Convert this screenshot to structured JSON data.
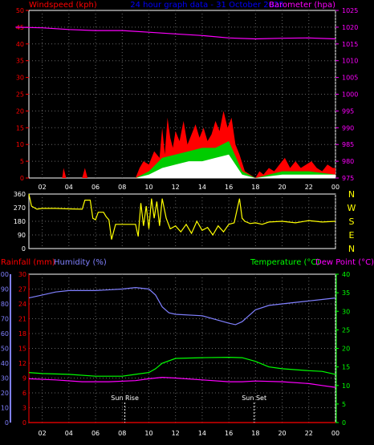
{
  "header": {
    "left": "Windspeed (kph)",
    "center": "24 hour graph data - 31 October 2025",
    "right": "Barometer (hpa)"
  },
  "colors": {
    "windspeed": "#ff0000",
    "gust": "#00cc00",
    "avg_wind": "#ffffff",
    "barometer": "#ff00ff",
    "direction": "#ffff00",
    "rainfall": "#ff0000",
    "humidity": "#8080ff",
    "temperature": "#00ff00",
    "dewpoint": "#ff00ff",
    "title_blue": "#0000ff",
    "grid": "#666666"
  },
  "x_ticks": [
    "02",
    "04",
    "06",
    "08",
    "10",
    "12",
    "14",
    "16",
    "18",
    "20",
    "22",
    "00"
  ],
  "chart_data": [
    {
      "type": "area",
      "title": "",
      "x_unit_hours": [
        1,
        24
      ],
      "series": [
        {
          "name": "Windspeed (kph)",
          "axis": "left",
          "ylim": [
            0,
            50
          ],
          "points": [
            [
              1,
              0
            ],
            [
              3.5,
              0
            ],
            [
              3.6,
              3
            ],
            [
              3.8,
              0
            ],
            [
              5,
              0
            ],
            [
              5.2,
              3
            ],
            [
              5.4,
              0
            ],
            [
              9,
              0
            ],
            [
              9.3,
              3
            ],
            [
              9.6,
              5
            ],
            [
              10,
              4
            ],
            [
              10.4,
              8
            ],
            [
              10.8,
              6
            ],
            [
              11,
              15
            ],
            [
              11.2,
              7
            ],
            [
              11.4,
              18
            ],
            [
              11.6,
              12
            ],
            [
              11.8,
              9
            ],
            [
              12,
              14
            ],
            [
              12.3,
              11
            ],
            [
              12.6,
              17
            ],
            [
              12.9,
              10
            ],
            [
              13.2,
              13
            ],
            [
              13.5,
              16
            ],
            [
              13.8,
              12
            ],
            [
              14.1,
              15
            ],
            [
              14.4,
              11
            ],
            [
              14.7,
              13
            ],
            [
              15,
              17
            ],
            [
              15.3,
              14
            ],
            [
              15.6,
              20
            ],
            [
              15.9,
              15
            ],
            [
              16.2,
              18
            ],
            [
              16.5,
              10
            ],
            [
              16.8,
              7
            ],
            [
              17.2,
              2
            ],
            [
              17.6,
              1
            ],
            [
              18,
              0
            ],
            [
              18.3,
              2
            ],
            [
              18.6,
              1
            ],
            [
              19,
              3
            ],
            [
              19.4,
              2
            ],
            [
              19.8,
              4
            ],
            [
              20.2,
              6
            ],
            [
              20.6,
              3
            ],
            [
              21,
              5
            ],
            [
              21.4,
              3
            ],
            [
              21.8,
              4
            ],
            [
              22.2,
              5
            ],
            [
              22.6,
              3
            ],
            [
              23,
              2
            ],
            [
              23.4,
              4
            ],
            [
              23.8,
              3
            ],
            [
              24,
              3
            ]
          ]
        },
        {
          "name": "Gust",
          "axis": "left",
          "ylim": [
            0,
            50
          ],
          "points": [
            [
              9,
              0
            ],
            [
              10,
              2
            ],
            [
              11,
              6
            ],
            [
              12,
              7
            ],
            [
              13,
              8
            ],
            [
              14,
              9
            ],
            [
              15,
              9
            ],
            [
              16,
              11
            ],
            [
              17,
              2
            ],
            [
              18,
              0
            ],
            [
              20,
              2
            ],
            [
              22,
              2
            ],
            [
              24,
              1
            ]
          ]
        },
        {
          "name": "Average",
          "axis": "left",
          "ylim": [
            0,
            50
          ],
          "points": [
            [
              9,
              0
            ],
            [
              10,
              1
            ],
            [
              11,
              3
            ],
            [
              12,
              4
            ],
            [
              13,
              5
            ],
            [
              14,
              5
            ],
            [
              15,
              6
            ],
            [
              16,
              7
            ],
            [
              17,
              1
            ],
            [
              18,
              0
            ],
            [
              20,
              1
            ],
            [
              22,
              1
            ],
            [
              24,
              1
            ]
          ]
        },
        {
          "name": "Barometer (hpa)",
          "axis": "right",
          "ylim": [
            975,
            1025
          ],
          "points": [
            [
              0,
              1020
            ],
            [
              2,
              1019.8
            ],
            [
              4,
              1019.3
            ],
            [
              6,
              1019
            ],
            [
              8,
              1019
            ],
            [
              10,
              1018.5
            ],
            [
              12,
              1018
            ],
            [
              14,
              1017.5
            ],
            [
              16,
              1016.8
            ],
            [
              18,
              1016.5
            ],
            [
              20,
              1016.7
            ],
            [
              22,
              1016.8
            ],
            [
              24,
              1016.5
            ]
          ]
        }
      ],
      "left_ticks": [
        "0",
        "5",
        "10",
        "15",
        "20",
        "25",
        "30",
        "35",
        "40",
        "45",
        "50"
      ],
      "right_ticks": [
        "975",
        "980",
        "985",
        "990",
        "995",
        "1000",
        "1005",
        "1010",
        "1015",
        "1020",
        "1025"
      ]
    },
    {
      "type": "line",
      "title": "",
      "ylim": [
        0,
        360
      ],
      "left_ticks": [
        "0",
        "90",
        "180",
        "270",
        "360"
      ],
      "right_labels": [
        "N",
        "W",
        "S",
        "E",
        "N"
      ],
      "series": [
        {
          "name": "Wind Direction",
          "points": [
            [
              1,
              360
            ],
            [
              1.2,
              280
            ],
            [
              1.6,
              260
            ],
            [
              2,
              265
            ],
            [
              3,
              265
            ],
            [
              4,
              262
            ],
            [
              5,
              260
            ],
            [
              5.2,
              320
            ],
            [
              5.6,
              320
            ],
            [
              5.8,
              200
            ],
            [
              6,
              190
            ],
            [
              6.2,
              240
            ],
            [
              6.6,
              240
            ],
            [
              6.8,
              210
            ],
            [
              7,
              190
            ],
            [
              7.2,
              60
            ],
            [
              7.5,
              160
            ],
            [
              8,
              160
            ],
            [
              9,
              160
            ],
            [
              9.2,
              80
            ],
            [
              9.4,
              300
            ],
            [
              9.6,
              150
            ],
            [
              9.8,
              280
            ],
            [
              10,
              130
            ],
            [
              10.2,
              330
            ],
            [
              10.4,
              200
            ],
            [
              10.6,
              310
            ],
            [
              10.8,
              150
            ],
            [
              11,
              330
            ],
            [
              11.3,
              200
            ],
            [
              11.6,
              130
            ],
            [
              12,
              150
            ],
            [
              12.4,
              110
            ],
            [
              12.8,
              160
            ],
            [
              13.2,
              100
            ],
            [
              13.6,
              180
            ],
            [
              14,
              120
            ],
            [
              14.4,
              140
            ],
            [
              14.8,
              90
            ],
            [
              15.2,
              150
            ],
            [
              15.6,
              110
            ],
            [
              16,
              160
            ],
            [
              16.4,
              170
            ],
            [
              16.6,
              250
            ],
            [
              16.8,
              330
            ],
            [
              17,
              200
            ],
            [
              17.2,
              180
            ],
            [
              17.6,
              165
            ],
            [
              18,
              170
            ],
            [
              18.5,
              160
            ],
            [
              19,
              175
            ],
            [
              20,
              180
            ],
            [
              21,
              170
            ],
            [
              22,
              185
            ],
            [
              23,
              175
            ],
            [
              24,
              180
            ]
          ]
        }
      ]
    },
    {
      "type": "line",
      "title": "",
      "series": [
        {
          "name": "Rainfall (mm)",
          "axis": "left-red",
          "ylim": [
            0,
            30
          ],
          "points": [
            [
              1,
              0
            ],
            [
              24,
              0
            ]
          ]
        },
        {
          "name": "Humidity (%)",
          "axis": "left-blue",
          "ylim": [
            0,
            100
          ],
          "points": [
            [
              1,
              84
            ],
            [
              2,
              86
            ],
            [
              3,
              88
            ],
            [
              4,
              89
            ],
            [
              6,
              89
            ],
            [
              8,
              90
            ],
            [
              9,
              91
            ],
            [
              10,
              90
            ],
            [
              10.5,
              86
            ],
            [
              11,
              78
            ],
            [
              11.5,
              74
            ],
            [
              12,
              73
            ],
            [
              14,
              72
            ],
            [
              16,
              67
            ],
            [
              16.5,
              66
            ],
            [
              17,
              68
            ],
            [
              17.5,
              72
            ],
            [
              18,
              76
            ],
            [
              19,
              79
            ],
            [
              20,
              80
            ],
            [
              21,
              81
            ],
            [
              22,
              82
            ],
            [
              23,
              83
            ],
            [
              24,
              84
            ]
          ]
        },
        {
          "name": "Temperature (°C)",
          "axis": "right",
          "ylim": [
            0,
            40
          ],
          "points": [
            [
              1,
              13.5
            ],
            [
              2,
              13.2
            ],
            [
              4,
              13
            ],
            [
              6,
              12.5
            ],
            [
              8,
              12.5
            ],
            [
              9,
              13
            ],
            [
              10,
              13.5
            ],
            [
              10.5,
              14.5
            ],
            [
              11,
              16
            ],
            [
              12,
              17.3
            ],
            [
              14,
              17.5
            ],
            [
              16,
              17.6
            ],
            [
              17,
              17.5
            ],
            [
              18,
              16.5
            ],
            [
              19,
              15
            ],
            [
              20,
              14.5
            ],
            [
              22,
              14
            ],
            [
              23,
              13.8
            ],
            [
              24,
              13
            ]
          ]
        },
        {
          "name": "Dew Point (°C)",
          "axis": "right",
          "ylim": [
            0,
            40
          ],
          "points": [
            [
              1,
              11.8
            ],
            [
              3,
              11.5
            ],
            [
              5,
              11
            ],
            [
              7,
              11
            ],
            [
              9,
              11.3
            ],
            [
              10,
              11.8
            ],
            [
              11,
              12.2
            ],
            [
              12,
              12
            ],
            [
              14,
              11.5
            ],
            [
              16,
              11
            ],
            [
              17,
              11
            ],
            [
              18,
              11.2
            ],
            [
              20,
              11
            ],
            [
              22,
              10.5
            ],
            [
              23,
              10
            ],
            [
              24,
              9.5
            ]
          ]
        }
      ],
      "left_red_ticks": [
        "0",
        "3",
        "6",
        "9",
        "12",
        "15",
        "18",
        "21",
        "24",
        "27",
        "30"
      ],
      "left_blue_ticks": [
        "0",
        "10",
        "20",
        "30",
        "40",
        "50",
        "60",
        "70",
        "80",
        "90",
        "100"
      ],
      "right_ticks": [
        "0",
        "5",
        "10",
        "15",
        "20",
        "25",
        "30",
        "35",
        "40"
      ],
      "annotations": [
        {
          "label": "Sun Rise",
          "hour": 8.2
        },
        {
          "label": "Sun Set",
          "hour": 17.9
        }
      ]
    }
  ],
  "panel3": {
    "rainfall_label": "Rainfall (mm)",
    "humidity_label": "Humidity (%)",
    "temperature_label": "Temperature (°C)",
    "dewpoint_label": "Dew Point (°C)",
    "sunrise_label": "Sun Rise",
    "sunset_label": "Sun Set"
  }
}
